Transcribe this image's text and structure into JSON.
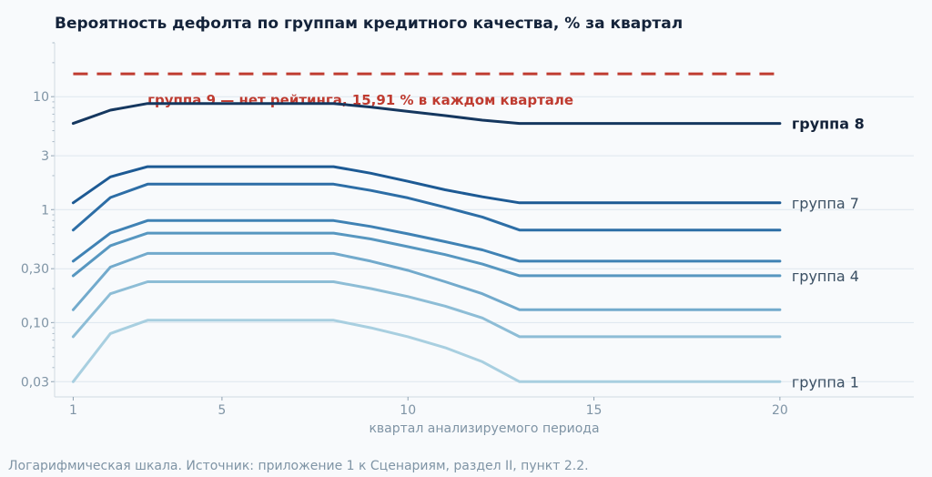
{
  "chart_data": {
    "type": "line",
    "title": "Вероятность дефолта по группам кредитного качества, % за квартал",
    "xlabel": "квартал анализируемого периода",
    "ylabel": "",
    "y_scale": "log",
    "xlim": [
      0.5,
      23.6
    ],
    "ylim": [
      0.022,
      30
    ],
    "grid": "horizontal",
    "x_ticks": [
      1,
      5,
      10,
      15,
      20
    ],
    "y_ticks": [
      {
        "value": 0.03,
        "label": "0,03"
      },
      {
        "value": 0.1,
        "label": "0,10"
      },
      {
        "value": 0.3,
        "label": "0,30"
      },
      {
        "value": 1,
        "label": "1"
      },
      {
        "value": 3,
        "label": "3"
      },
      {
        "value": 10,
        "label": "10"
      }
    ],
    "x": [
      1,
      2,
      3,
      4,
      5,
      6,
      7,
      8,
      9,
      10,
      11,
      12,
      13,
      14,
      15,
      16,
      17,
      18,
      19,
      20
    ],
    "series": [
      {
        "id": "g1",
        "color": "#a8cfe0",
        "values": [
          0.03,
          0.08,
          0.105,
          0.105,
          0.105,
          0.105,
          0.105,
          0.105,
          0.09,
          0.075,
          0.06,
          0.045,
          0.03,
          0.03,
          0.03,
          0.03,
          0.03,
          0.03,
          0.03,
          0.03
        ]
      },
      {
        "id": "g2",
        "color": "#8dbdd6",
        "values": [
          0.075,
          0.18,
          0.23,
          0.23,
          0.23,
          0.23,
          0.23,
          0.23,
          0.2,
          0.17,
          0.14,
          0.11,
          0.075,
          0.075,
          0.075,
          0.075,
          0.075,
          0.075,
          0.075,
          0.075
        ]
      },
      {
        "id": "g3",
        "color": "#72aacc",
        "values": [
          0.13,
          0.31,
          0.41,
          0.41,
          0.41,
          0.41,
          0.41,
          0.41,
          0.35,
          0.29,
          0.23,
          0.18,
          0.13,
          0.13,
          0.13,
          0.13,
          0.13,
          0.13,
          0.13,
          0.13
        ]
      },
      {
        "id": "g4",
        "color": "#5797c0",
        "values": [
          0.26,
          0.48,
          0.62,
          0.62,
          0.62,
          0.62,
          0.62,
          0.62,
          0.55,
          0.47,
          0.4,
          0.33,
          0.26,
          0.26,
          0.26,
          0.26,
          0.26,
          0.26,
          0.26,
          0.26
        ]
      },
      {
        "id": "g5",
        "color": "#3f82b4",
        "values": [
          0.35,
          0.62,
          0.8,
          0.8,
          0.8,
          0.8,
          0.8,
          0.8,
          0.71,
          0.61,
          0.52,
          0.44,
          0.35,
          0.35,
          0.35,
          0.35,
          0.35,
          0.35,
          0.35,
          0.35
        ]
      },
      {
        "id": "g6",
        "color": "#2d6ea6",
        "values": [
          0.66,
          1.28,
          1.68,
          1.68,
          1.68,
          1.68,
          1.68,
          1.68,
          1.48,
          1.27,
          1.05,
          0.86,
          0.66,
          0.66,
          0.66,
          0.66,
          0.66,
          0.66,
          0.66,
          0.66
        ]
      },
      {
        "id": "g7",
        "color": "#1d5a94",
        "values": [
          1.15,
          1.95,
          2.4,
          2.4,
          2.4,
          2.4,
          2.4,
          2.4,
          2.1,
          1.78,
          1.5,
          1.3,
          1.15,
          1.15,
          1.15,
          1.15,
          1.15,
          1.15,
          1.15,
          1.15
        ]
      },
      {
        "id": "g8",
        "color": "#15375f",
        "values": [
          5.8,
          7.6,
          8.7,
          8.7,
          8.7,
          8.7,
          8.7,
          8.7,
          8.1,
          7.4,
          6.8,
          6.2,
          5.8,
          5.8,
          5.8,
          5.8,
          5.8,
          5.8,
          5.8,
          5.8
        ]
      }
    ],
    "series_labels": [
      {
        "series": "g8",
        "text": "группа 8",
        "bold": true
      },
      {
        "series": "g7",
        "text": "группа 7",
        "bold": false
      },
      {
        "series": "g4",
        "text": "группа 4",
        "bold": false
      },
      {
        "series": "g1",
        "text": "группа 1",
        "bold": false
      }
    ],
    "reference_line": {
      "value": 15.91,
      "x_from": 1,
      "x_to": 20,
      "color": "#bf3b30",
      "style": "dashed",
      "annotation": "группа 9 — нет рейтинга, 15,91 % в каждом квартале"
    }
  },
  "caption": "Логарифмическая шкала. Источник: приложение 1 к Сценариям, раздел II, пункт 2.2."
}
